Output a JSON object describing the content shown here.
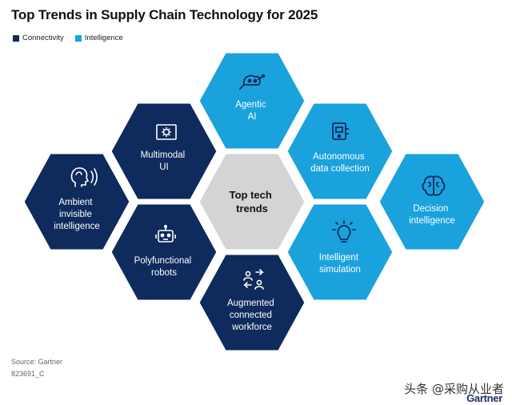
{
  "header": {
    "title": "Top Trends in Supply Chain Technology for 2025"
  },
  "legend": [
    {
      "label": "Connectivity",
      "color": "#0f2a5c"
    },
    {
      "label": "Intelligence",
      "color": "#1aa2dc"
    }
  ],
  "colors": {
    "connectivity": "#0f2a5c",
    "intelligence": "#1aa2dc",
    "center": "#d4d4d4"
  },
  "hexes": [
    {
      "id": "center",
      "lines": [
        "Top tech",
        "trends"
      ],
      "category": "center",
      "icon": "none"
    },
    {
      "id": "agentic-ai",
      "lines": [
        "Agentic",
        "AI"
      ],
      "category": "intelligence",
      "icon": "agentic-ai-icon"
    },
    {
      "id": "autonomous-data-collection",
      "lines": [
        "Autonomous",
        "data collection"
      ],
      "category": "intelligence",
      "icon": "data-collection-icon"
    },
    {
      "id": "intelligent-simulation",
      "lines": [
        "Intelligent",
        "simulation"
      ],
      "category": "intelligence",
      "icon": "lightbulb-icon"
    },
    {
      "id": "augmented-connected-workforce",
      "lines": [
        "Augmented",
        "connected",
        "workforce"
      ],
      "category": "connectivity",
      "icon": "people-exchange-icon"
    },
    {
      "id": "polyfunctional-robots",
      "lines": [
        "Polyfunctional",
        "robots"
      ],
      "category": "connectivity",
      "icon": "robot-icon"
    },
    {
      "id": "multimodal-ui",
      "lines": [
        "Multimodal",
        "UI"
      ],
      "category": "connectivity",
      "icon": "multimodal-ui-icon"
    },
    {
      "id": "ambient-invisible-intelligence",
      "lines": [
        "Ambient",
        "invisible",
        "intelligence"
      ],
      "category": "connectivity",
      "icon": "ambient-head-icon"
    },
    {
      "id": "decision-intelligence",
      "lines": [
        "Decision",
        "intelligence"
      ],
      "category": "intelligence",
      "icon": "brain-icon"
    }
  ],
  "footer": {
    "source": "Source: Gartner",
    "code": "823691_C",
    "watermark": "头条 @采购从业者",
    "brand": "Gartner"
  }
}
